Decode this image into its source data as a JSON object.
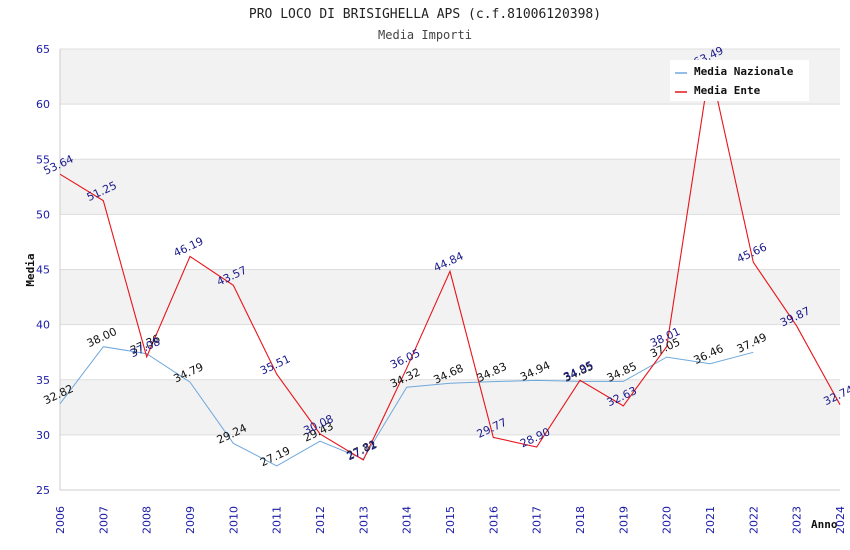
{
  "chart_data": {
    "type": "line",
    "title": "PRO LOCO DI BRISIGHELLA APS (c.f.81006120398)",
    "subtitle": "Media Importi",
    "xlabel": "Anno",
    "ylabel": "Media",
    "ylim": [
      25,
      65
    ],
    "yticks": [
      "25",
      "30",
      "35",
      "40",
      "45",
      "50",
      "55",
      "60",
      "65"
    ],
    "categories": [
      "2006",
      "2007",
      "2008",
      "2009",
      "2010",
      "2011",
      "2012",
      "2013",
      "2014",
      "2015",
      "2016",
      "2017",
      "2018",
      "2019",
      "2020",
      "2021",
      "2022",
      "2023",
      "2024"
    ],
    "legend_position": "top-right",
    "grid": "horizontal bands",
    "series": [
      {
        "name": "Media Nazionale",
        "color": "#6fa8dc",
        "label_color": "#111111",
        "values": [
          32.82,
          38.0,
          37.36,
          34.79,
          29.24,
          27.19,
          29.43,
          27.81,
          34.32,
          34.68,
          34.83,
          34.94,
          34.85,
          34.85,
          37.05,
          36.46,
          37.49,
          null,
          null
        ],
        "labels": [
          "32.82",
          "38.00",
          "37.36",
          "34.79",
          "29.24",
          "27.19",
          "29.43",
          "27.81",
          "34.32",
          "34.68",
          "34.83",
          "34.94",
          "34.85",
          "34.85",
          "37.05",
          "36.46",
          "37.49",
          "",
          ""
        ]
      },
      {
        "name": "Media Ente",
        "color": "#e8141a",
        "label_color": "#1a1a8c",
        "values": [
          53.64,
          51.25,
          37.08,
          46.19,
          43.57,
          35.51,
          30.08,
          27.72,
          36.05,
          44.84,
          29.77,
          28.9,
          34.95,
          32.63,
          38.01,
          63.49,
          45.66,
          39.87,
          32.74
        ],
        "labels": [
          "53.64",
          "51.25",
          "37.08",
          "46.19",
          "43.57",
          "35.51",
          "30.08",
          "27.72",
          "36.05",
          "44.84",
          "29.77",
          "28.90",
          "34.95",
          "32.63",
          "38.01",
          "63.49",
          "45.66",
          "39.87",
          "32.74"
        ]
      }
    ]
  }
}
